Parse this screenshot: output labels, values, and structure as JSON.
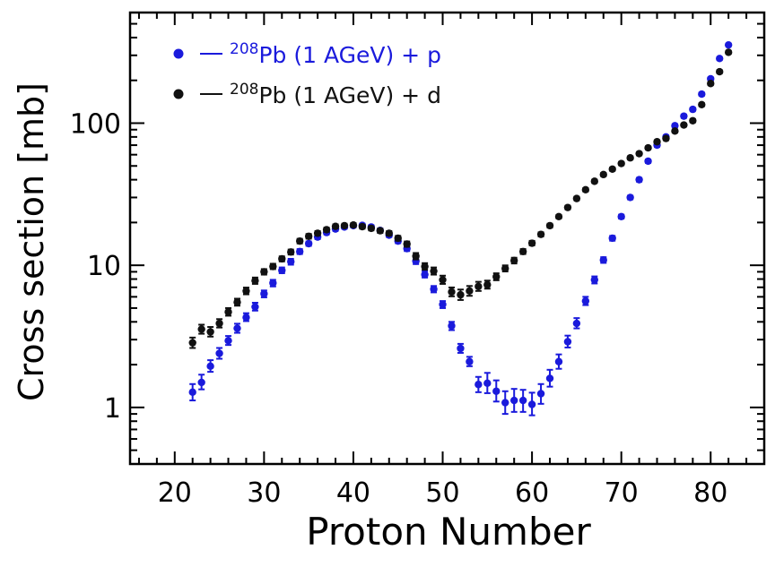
{
  "chart_data": {
    "type": "scatter",
    "title": "",
    "xlabel": "Proton Number",
    "ylabel": "Cross section [mb]",
    "xlim": [
      15,
      86
    ],
    "ylim": [
      0.4,
      600
    ],
    "yscale": "log",
    "x_ticks": [
      20,
      30,
      40,
      50,
      60,
      70,
      80
    ],
    "y_ticks": [
      1,
      10,
      100
    ],
    "legend_position": "top-left",
    "series": [
      {
        "name_sup": "208",
        "name_main": "Pb (1 AGeV) + p",
        "color": "#1a1adc",
        "points": [
          {
            "x": 22,
            "y": 1.28,
            "lo": 1.12,
            "hi": 1.46
          },
          {
            "x": 23,
            "y": 1.5,
            "lo": 1.34,
            "hi": 1.7
          },
          {
            "x": 24,
            "y": 1.95,
            "lo": 1.78,
            "hi": 2.15
          },
          {
            "x": 25,
            "y": 2.4,
            "lo": 2.2,
            "hi": 2.62
          },
          {
            "x": 26,
            "y": 2.95,
            "lo": 2.75,
            "hi": 3.18
          },
          {
            "x": 27,
            "y": 3.6,
            "lo": 3.35,
            "hi": 3.88
          },
          {
            "x": 28,
            "y": 4.3,
            "lo": 4.05,
            "hi": 4.6
          },
          {
            "x": 29,
            "y": 5.1,
            "lo": 4.8,
            "hi": 5.45
          },
          {
            "x": 30,
            "y": 6.3,
            "lo": 5.95,
            "hi": 6.65
          },
          {
            "x": 31,
            "y": 7.5,
            "lo": 7.1,
            "hi": 7.9
          },
          {
            "x": 32,
            "y": 9.2,
            "lo": 8.8,
            "hi": 9.65
          },
          {
            "x": 33,
            "y": 10.6,
            "lo": 10.1,
            "hi": 11.1
          },
          {
            "x": 34,
            "y": 12.5,
            "lo": 12.0,
            "hi": 13.0
          },
          {
            "x": 35,
            "y": 14.2,
            "lo": 13.7,
            "hi": 14.7
          },
          {
            "x": 36,
            "y": 15.8,
            "lo": 15.3,
            "hi": 16.3
          },
          {
            "x": 37,
            "y": 17.0,
            "lo": 16.5,
            "hi": 17.5
          },
          {
            "x": 38,
            "y": 18.0,
            "lo": 17.5,
            "hi": 18.5
          },
          {
            "x": 39,
            "y": 18.6,
            "lo": 18.1,
            "hi": 19.1
          },
          {
            "x": 40,
            "y": 19.0,
            "lo": 18.5,
            "hi": 19.5
          },
          {
            "x": 41,
            "y": 19.1,
            "lo": 18.6,
            "hi": 19.6
          },
          {
            "x": 42,
            "y": 18.6,
            "lo": 18.1,
            "hi": 19.1
          },
          {
            "x": 43,
            "y": 17.6,
            "lo": 17.1,
            "hi": 18.1
          },
          {
            "x": 44,
            "y": 16.3,
            "lo": 15.8,
            "hi": 16.8
          },
          {
            "x": 45,
            "y": 14.8,
            "lo": 14.3,
            "hi": 15.4
          },
          {
            "x": 46,
            "y": 13.1,
            "lo": 12.6,
            "hi": 13.7
          },
          {
            "x": 47,
            "y": 10.7,
            "lo": 10.2,
            "hi": 11.2
          },
          {
            "x": 48,
            "y": 8.6,
            "lo": 8.2,
            "hi": 9.1
          },
          {
            "x": 49,
            "y": 6.8,
            "lo": 6.45,
            "hi": 7.15
          },
          {
            "x": 50,
            "y": 5.3,
            "lo": 5.0,
            "hi": 5.6
          },
          {
            "x": 51,
            "y": 3.75,
            "lo": 3.5,
            "hi": 4.0
          },
          {
            "x": 52,
            "y": 2.6,
            "lo": 2.42,
            "hi": 2.8
          },
          {
            "x": 53,
            "y": 2.1,
            "lo": 1.95,
            "hi": 2.27
          },
          {
            "x": 54,
            "y": 1.45,
            "lo": 1.28,
            "hi": 1.64
          },
          {
            "x": 55,
            "y": 1.48,
            "lo": 1.26,
            "hi": 1.75
          },
          {
            "x": 56,
            "y": 1.3,
            "lo": 1.1,
            "hi": 1.55
          },
          {
            "x": 57,
            "y": 1.08,
            "lo": 0.9,
            "hi": 1.3
          },
          {
            "x": 58,
            "y": 1.12,
            "lo": 0.93,
            "hi": 1.35
          },
          {
            "x": 59,
            "y": 1.12,
            "lo": 0.93,
            "hi": 1.33
          },
          {
            "x": 60,
            "y": 1.05,
            "lo": 0.88,
            "hi": 1.27
          },
          {
            "x": 61,
            "y": 1.25,
            "lo": 1.06,
            "hi": 1.46
          },
          {
            "x": 62,
            "y": 1.6,
            "lo": 1.4,
            "hi": 1.84
          },
          {
            "x": 63,
            "y": 2.1,
            "lo": 1.87,
            "hi": 2.36
          },
          {
            "x": 64,
            "y": 2.9,
            "lo": 2.64,
            "hi": 3.2
          },
          {
            "x": 65,
            "y": 3.9,
            "lo": 3.6,
            "hi": 4.25
          },
          {
            "x": 66,
            "y": 5.6,
            "lo": 5.25,
            "hi": 6.0
          },
          {
            "x": 67,
            "y": 7.9,
            "lo": 7.45,
            "hi": 8.35
          },
          {
            "x": 68,
            "y": 10.9,
            "lo": 10.4,
            "hi": 11.4
          },
          {
            "x": 69,
            "y": 15.5,
            "lo": 14.9,
            "hi": 16.1
          },
          {
            "x": 70,
            "y": 22.0,
            "lo": 21.3,
            "hi": 22.7
          },
          {
            "x": 71,
            "y": 30.0,
            "lo": 29.1,
            "hi": 30.9
          },
          {
            "x": 72,
            "y": 40.0,
            "lo": 38.8,
            "hi": 41.2
          },
          {
            "x": 73,
            "y": 54.0,
            "lo": 52.5,
            "hi": 55.5
          },
          {
            "x": 74,
            "y": 70.0,
            "lo": 68.0,
            "hi": 72.0
          },
          {
            "x": 75,
            "y": 80.0,
            "lo": 77.8,
            "hi": 82.2
          },
          {
            "x": 76,
            "y": 96.0,
            "lo": 93.5,
            "hi": 98.5
          },
          {
            "x": 77,
            "y": 112.0,
            "lo": 109.0,
            "hi": 115.0
          },
          {
            "x": 78,
            "y": 125.0,
            "lo": 122.0,
            "hi": 128.0
          },
          {
            "x": 79,
            "y": 160.0,
            "lo": 156.0,
            "hi": 164.0
          },
          {
            "x": 80,
            "y": 205.0,
            "lo": 200.0,
            "hi": 210.0
          },
          {
            "x": 81,
            "y": 285.0,
            "lo": 279.0,
            "hi": 291.0
          },
          {
            "x": 82,
            "y": 355.0,
            "lo": 348.0,
            "hi": 362.0
          }
        ]
      },
      {
        "name_sup": "208",
        "name_main": "Pb (1 AGeV) + d",
        "color": "#111111",
        "points": [
          {
            "x": 22,
            "y": 2.85,
            "lo": 2.62,
            "hi": 3.1
          },
          {
            "x": 23,
            "y": 3.55,
            "lo": 3.3,
            "hi": 3.82
          },
          {
            "x": 24,
            "y": 3.4,
            "lo": 3.15,
            "hi": 3.68
          },
          {
            "x": 25,
            "y": 3.9,
            "lo": 3.65,
            "hi": 4.18
          },
          {
            "x": 26,
            "y": 4.7,
            "lo": 4.42,
            "hi": 5.0
          },
          {
            "x": 27,
            "y": 5.5,
            "lo": 5.2,
            "hi": 5.82
          },
          {
            "x": 28,
            "y": 6.6,
            "lo": 6.25,
            "hi": 6.97
          },
          {
            "x": 29,
            "y": 7.8,
            "lo": 7.4,
            "hi": 8.2
          },
          {
            "x": 30,
            "y": 9.0,
            "lo": 8.6,
            "hi": 9.4
          },
          {
            "x": 31,
            "y": 9.8,
            "lo": 9.4,
            "hi": 10.25
          },
          {
            "x": 32,
            "y": 11.1,
            "lo": 10.65,
            "hi": 11.55
          },
          {
            "x": 33,
            "y": 12.4,
            "lo": 11.9,
            "hi": 12.9
          },
          {
            "x": 34,
            "y": 14.8,
            "lo": 14.25,
            "hi": 15.35
          },
          {
            "x": 35,
            "y": 16.0,
            "lo": 15.4,
            "hi": 16.6
          },
          {
            "x": 36,
            "y": 16.8,
            "lo": 16.2,
            "hi": 17.4
          },
          {
            "x": 37,
            "y": 17.8,
            "lo": 17.2,
            "hi": 18.4
          },
          {
            "x": 38,
            "y": 18.8,
            "lo": 18.2,
            "hi": 19.4
          },
          {
            "x": 39,
            "y": 19.0,
            "lo": 18.4,
            "hi": 19.6
          },
          {
            "x": 40,
            "y": 19.2,
            "lo": 18.6,
            "hi": 19.8
          },
          {
            "x": 41,
            "y": 18.7,
            "lo": 18.1,
            "hi": 19.3
          },
          {
            "x": 42,
            "y": 18.2,
            "lo": 17.6,
            "hi": 18.8
          },
          {
            "x": 43,
            "y": 17.5,
            "lo": 16.9,
            "hi": 18.1
          },
          {
            "x": 44,
            "y": 16.8,
            "lo": 16.2,
            "hi": 17.4
          },
          {
            "x": 45,
            "y": 15.5,
            "lo": 14.9,
            "hi": 16.1
          },
          {
            "x": 46,
            "y": 14.1,
            "lo": 13.5,
            "hi": 14.7
          },
          {
            "x": 47,
            "y": 11.6,
            "lo": 11.0,
            "hi": 12.2
          },
          {
            "x": 48,
            "y": 9.8,
            "lo": 9.3,
            "hi": 10.35
          },
          {
            "x": 49,
            "y": 9.1,
            "lo": 8.6,
            "hi": 9.65
          },
          {
            "x": 50,
            "y": 7.9,
            "lo": 7.4,
            "hi": 8.45
          },
          {
            "x": 51,
            "y": 6.5,
            "lo": 6.05,
            "hi": 6.98
          },
          {
            "x": 52,
            "y": 6.2,
            "lo": 5.7,
            "hi": 6.75
          },
          {
            "x": 53,
            "y": 6.6,
            "lo": 6.1,
            "hi": 7.15
          },
          {
            "x": 54,
            "y": 7.1,
            "lo": 6.6,
            "hi": 7.65
          },
          {
            "x": 55,
            "y": 7.3,
            "lo": 6.85,
            "hi": 7.8
          },
          {
            "x": 56,
            "y": 8.3,
            "lo": 7.85,
            "hi": 8.78
          },
          {
            "x": 57,
            "y": 9.5,
            "lo": 9.05,
            "hi": 9.98
          },
          {
            "x": 58,
            "y": 10.8,
            "lo": 10.3,
            "hi": 11.3
          },
          {
            "x": 59,
            "y": 12.5,
            "lo": 12.0,
            "hi": 13.0
          },
          {
            "x": 60,
            "y": 14.3,
            "lo": 13.8,
            "hi": 14.85
          },
          {
            "x": 61,
            "y": 16.5,
            "lo": 15.95,
            "hi": 17.05
          },
          {
            "x": 62,
            "y": 19.0,
            "lo": 18.4,
            "hi": 19.6
          },
          {
            "x": 63,
            "y": 22.0,
            "lo": 21.4,
            "hi": 22.6
          },
          {
            "x": 64,
            "y": 25.5,
            "lo": 24.8,
            "hi": 26.2
          },
          {
            "x": 65,
            "y": 29.5,
            "lo": 28.7,
            "hi": 30.3
          },
          {
            "x": 66,
            "y": 34.0,
            "lo": 33.1,
            "hi": 34.9
          },
          {
            "x": 67,
            "y": 39.0,
            "lo": 38.0,
            "hi": 40.0
          },
          {
            "x": 68,
            "y": 43.5,
            "lo": 42.4,
            "hi": 44.6
          },
          {
            "x": 69,
            "y": 47.5,
            "lo": 46.3,
            "hi": 48.7
          },
          {
            "x": 70,
            "y": 52.0,
            "lo": 50.7,
            "hi": 53.3
          },
          {
            "x": 71,
            "y": 57.0,
            "lo": 55.6,
            "hi": 58.4
          },
          {
            "x": 72,
            "y": 61.0,
            "lo": 59.5,
            "hi": 62.5
          },
          {
            "x": 73,
            "y": 67.0,
            "lo": 65.4,
            "hi": 68.6
          },
          {
            "x": 74,
            "y": 74.0,
            "lo": 72.2,
            "hi": 75.8
          },
          {
            "x": 75,
            "y": 78.0,
            "lo": 76.1,
            "hi": 79.9
          },
          {
            "x": 76,
            "y": 88.0,
            "lo": 85.9,
            "hi": 90.1
          },
          {
            "x": 77,
            "y": 97.0,
            "lo": 94.7,
            "hi": 99.3
          },
          {
            "x": 78,
            "y": 104.0,
            "lo": 101.5,
            "hi": 106.5
          },
          {
            "x": 79,
            "y": 135.0,
            "lo": 131.8,
            "hi": 138.2
          },
          {
            "x": 80,
            "y": 190.0,
            "lo": 185.5,
            "hi": 194.5
          },
          {
            "x": 81,
            "y": 230.0,
            "lo": 224.5,
            "hi": 235.5
          },
          {
            "x": 82,
            "y": 315.0,
            "lo": 308.0,
            "hi": 322.0
          }
        ]
      }
    ]
  }
}
